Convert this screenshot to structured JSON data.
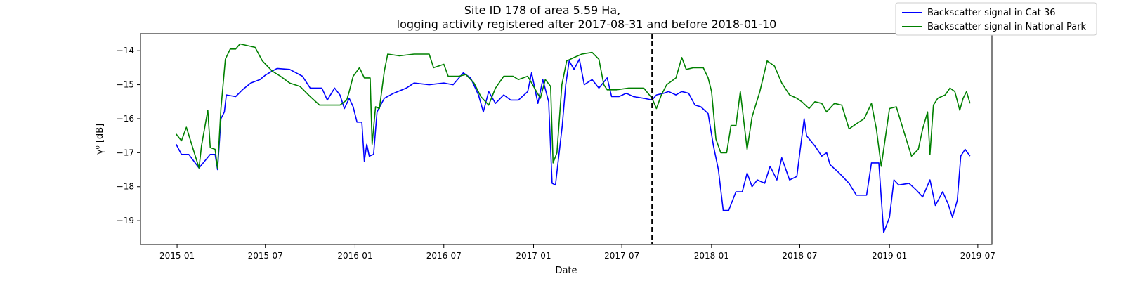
{
  "chart_data": {
    "type": "line",
    "title_line1": "Site ID 178 of area 5.59 Ha,",
    "title_line2": "logging activity registered after 2017-08-31 and before 2018-01-10",
    "xlabel": "Date",
    "ylabel": "γ̅⁰ [dB]",
    "ylim": [
      -19.7,
      -13.5
    ],
    "xlim": [
      "2014-10-18",
      "2019-07-30"
    ],
    "x_ticks": [
      "2015-01",
      "2015-07",
      "2016-01",
      "2016-07",
      "2017-01",
      "2017-07",
      "2018-01",
      "2018-07",
      "2019-01",
      "2019-07"
    ],
    "y_ticks": [
      -14,
      -15,
      -16,
      -17,
      -18,
      -19
    ],
    "y_tick_labels": [
      "−14",
      "−15",
      "−16",
      "−17",
      "−18",
      "−19"
    ],
    "vline": {
      "date": "2017-09-01",
      "style": "dashed",
      "color": "#000000"
    },
    "grid": false,
    "legend_position": "top-right",
    "series": [
      {
        "name": "Backscatter signal in Cat 36",
        "color": "#0000ff",
        "points": [
          [
            "2014-12-30",
            -16.75
          ],
          [
            "2015-01-10",
            -17.05
          ],
          [
            "2015-01-25",
            -17.05
          ],
          [
            "2015-02-15",
            -17.45
          ],
          [
            "2015-03-10",
            -17.05
          ],
          [
            "2015-03-20",
            -17.05
          ],
          [
            "2015-03-25",
            -17.5
          ],
          [
            "2015-04-01",
            -16.0
          ],
          [
            "2015-04-08",
            -15.8
          ],
          [
            "2015-04-12",
            -15.3
          ],
          [
            "2015-05-01",
            -15.35
          ],
          [
            "2015-05-15",
            -15.15
          ],
          [
            "2015-06-01",
            -14.95
          ],
          [
            "2015-06-20",
            -14.85
          ],
          [
            "2015-07-01",
            -14.72
          ],
          [
            "2015-07-15",
            -14.6
          ],
          [
            "2015-07-25",
            -14.52
          ],
          [
            "2015-08-20",
            -14.55
          ],
          [
            "2015-09-15",
            -14.75
          ],
          [
            "2015-10-01",
            -15.1
          ],
          [
            "2015-10-25",
            -15.1
          ],
          [
            "2015-11-05",
            -15.45
          ],
          [
            "2015-11-20",
            -15.1
          ],
          [
            "2015-12-01",
            -15.3
          ],
          [
            "2015-12-10",
            -15.7
          ],
          [
            "2015-12-20",
            -15.4
          ],
          [
            "2015-12-28",
            -15.65
          ],
          [
            "2016-01-05",
            -16.1
          ],
          [
            "2016-01-15",
            -16.1
          ],
          [
            "2016-01-20",
            -17.25
          ],
          [
            "2016-01-25",
            -16.75
          ],
          [
            "2016-01-30",
            -17.1
          ],
          [
            "2016-02-08",
            -17.05
          ],
          [
            "2016-02-15",
            -15.8
          ],
          [
            "2016-03-01",
            -15.4
          ],
          [
            "2016-03-20",
            -15.25
          ],
          [
            "2016-04-15",
            -15.1
          ],
          [
            "2016-05-01",
            -14.95
          ],
          [
            "2016-06-01",
            -15.0
          ],
          [
            "2016-07-01",
            -14.95
          ],
          [
            "2016-07-20",
            -15.0
          ],
          [
            "2016-08-10",
            -14.65
          ],
          [
            "2016-08-25",
            -14.8
          ],
          [
            "2016-09-10",
            -15.3
          ],
          [
            "2016-09-20",
            -15.8
          ],
          [
            "2016-10-01",
            -15.2
          ],
          [
            "2016-10-15",
            -15.55
          ],
          [
            "2016-11-01",
            -15.3
          ],
          [
            "2016-11-15",
            -15.45
          ],
          [
            "2016-12-01",
            -15.45
          ],
          [
            "2016-12-20",
            -15.2
          ],
          [
            "2016-12-28",
            -14.65
          ],
          [
            "2017-01-10",
            -15.55
          ],
          [
            "2017-01-20",
            -14.85
          ],
          [
            "2017-02-01",
            -15.5
          ],
          [
            "2017-02-08",
            -17.9
          ],
          [
            "2017-02-15",
            -17.95
          ],
          [
            "2017-03-01",
            -16.2
          ],
          [
            "2017-03-08",
            -15.0
          ],
          [
            "2017-03-15",
            -14.3
          ],
          [
            "2017-03-25",
            -14.55
          ],
          [
            "2017-04-05",
            -14.25
          ],
          [
            "2017-04-15",
            -15.0
          ],
          [
            "2017-05-01",
            -14.85
          ],
          [
            "2017-05-15",
            -15.1
          ],
          [
            "2017-06-01",
            -14.8
          ],
          [
            "2017-06-10",
            -15.35
          ],
          [
            "2017-06-25",
            -15.35
          ],
          [
            "2017-07-10",
            -15.25
          ],
          [
            "2017-07-25",
            -15.35
          ],
          [
            "2017-08-15",
            -15.4
          ],
          [
            "2017-09-01",
            -15.45
          ],
          [
            "2017-09-10",
            -15.3
          ],
          [
            "2017-09-25",
            -15.25
          ],
          [
            "2017-10-05",
            -15.2
          ],
          [
            "2017-10-20",
            -15.3
          ],
          [
            "2017-11-01",
            -15.2
          ],
          [
            "2017-11-15",
            -15.25
          ],
          [
            "2017-11-28",
            -15.6
          ],
          [
            "2017-12-10",
            -15.65
          ],
          [
            "2017-12-25",
            -15.85
          ],
          [
            "2018-01-05",
            -16.8
          ],
          [
            "2018-01-15",
            -17.5
          ],
          [
            "2018-01-25",
            -18.7
          ],
          [
            "2018-02-05",
            -18.7
          ],
          [
            "2018-02-20",
            -18.15
          ],
          [
            "2018-03-05",
            -18.15
          ],
          [
            "2018-03-15",
            -17.6
          ],
          [
            "2018-03-25",
            -18.0
          ],
          [
            "2018-04-05",
            -17.8
          ],
          [
            "2018-04-20",
            -17.9
          ],
          [
            "2018-05-01",
            -17.4
          ],
          [
            "2018-05-15",
            -17.8
          ],
          [
            "2018-05-25",
            -17.15
          ],
          [
            "2018-06-10",
            -17.8
          ],
          [
            "2018-06-25",
            -17.7
          ],
          [
            "2018-07-01",
            -17.0
          ],
          [
            "2018-07-10",
            -16.0
          ],
          [
            "2018-07-15",
            -16.5
          ],
          [
            "2018-08-01",
            -16.8
          ],
          [
            "2018-08-15",
            -17.1
          ],
          [
            "2018-08-25",
            -17.0
          ],
          [
            "2018-09-01",
            -17.35
          ],
          [
            "2018-09-20",
            -17.6
          ],
          [
            "2018-10-10",
            -17.9
          ],
          [
            "2018-10-25",
            -18.25
          ],
          [
            "2018-11-15",
            -18.25
          ],
          [
            "2018-11-25",
            -17.3
          ],
          [
            "2018-12-10",
            -17.3
          ],
          [
            "2018-12-20",
            -19.35
          ],
          [
            "2019-01-01",
            -18.9
          ],
          [
            "2019-01-10",
            -17.8
          ],
          [
            "2019-01-20",
            -17.95
          ],
          [
            "2019-02-10",
            -17.9
          ],
          [
            "2019-02-25",
            -18.1
          ],
          [
            "2019-03-10",
            -18.3
          ],
          [
            "2019-03-25",
            -17.8
          ],
          [
            "2019-04-05",
            -18.55
          ],
          [
            "2019-04-20",
            -18.15
          ],
          [
            "2019-05-01",
            -18.5
          ],
          [
            "2019-05-10",
            -18.9
          ],
          [
            "2019-05-20",
            -18.4
          ],
          [
            "2019-05-27",
            -17.1
          ],
          [
            "2019-06-05",
            -16.9
          ],
          [
            "2019-06-15",
            -17.1
          ]
        ]
      },
      {
        "name": "Backscatter signal in National Park",
        "color": "#008000",
        "points": [
          [
            "2014-12-30",
            -16.45
          ],
          [
            "2015-01-10",
            -16.65
          ],
          [
            "2015-01-20",
            -16.25
          ],
          [
            "2015-02-15",
            -17.45
          ],
          [
            "2015-02-20",
            -16.8
          ],
          [
            "2015-03-05",
            -15.75
          ],
          [
            "2015-03-10",
            -16.85
          ],
          [
            "2015-03-20",
            -16.9
          ],
          [
            "2015-03-25",
            -17.45
          ],
          [
            "2015-04-01",
            -15.7
          ],
          [
            "2015-04-10",
            -14.25
          ],
          [
            "2015-04-20",
            -13.95
          ],
          [
            "2015-05-01",
            -13.95
          ],
          [
            "2015-05-10",
            -13.8
          ],
          [
            "2015-05-25",
            -13.85
          ],
          [
            "2015-06-10",
            -13.9
          ],
          [
            "2015-06-25",
            -14.3
          ],
          [
            "2015-07-15",
            -14.6
          ],
          [
            "2015-08-01",
            -14.75
          ],
          [
            "2015-08-20",
            -14.95
          ],
          [
            "2015-09-10",
            -15.05
          ],
          [
            "2015-10-01",
            -15.35
          ],
          [
            "2015-10-20",
            -15.6
          ],
          [
            "2015-11-10",
            -15.6
          ],
          [
            "2015-12-01",
            -15.6
          ],
          [
            "2015-12-15",
            -15.45
          ],
          [
            "2015-12-20",
            -15.2
          ],
          [
            "2015-12-28",
            -14.75
          ],
          [
            "2016-01-10",
            -14.5
          ],
          [
            "2016-01-20",
            -14.8
          ],
          [
            "2016-02-01",
            -14.8
          ],
          [
            "2016-02-05",
            -16.75
          ],
          [
            "2016-02-12",
            -15.65
          ],
          [
            "2016-02-20",
            -15.7
          ],
          [
            "2016-03-01",
            -14.6
          ],
          [
            "2016-03-08",
            -14.1
          ],
          [
            "2016-04-01",
            -14.15
          ],
          [
            "2016-05-01",
            -14.1
          ],
          [
            "2016-06-01",
            -14.1
          ],
          [
            "2016-06-10",
            -14.5
          ],
          [
            "2016-07-01",
            -14.4
          ],
          [
            "2016-07-10",
            -14.75
          ],
          [
            "2016-08-01",
            -14.75
          ],
          [
            "2016-08-15",
            -14.7
          ],
          [
            "2016-09-01",
            -14.95
          ],
          [
            "2016-09-15",
            -15.35
          ],
          [
            "2016-10-01",
            -15.6
          ],
          [
            "2016-10-15",
            -15.1
          ],
          [
            "2016-11-01",
            -14.75
          ],
          [
            "2016-11-20",
            -14.75
          ],
          [
            "2016-12-01",
            -14.85
          ],
          [
            "2016-12-20",
            -14.75
          ],
          [
            "2017-01-01",
            -15.05
          ],
          [
            "2017-01-15",
            -15.4
          ],
          [
            "2017-01-25",
            -14.85
          ],
          [
            "2017-02-05",
            -15.05
          ],
          [
            "2017-02-10",
            -17.3
          ],
          [
            "2017-02-18",
            -17.0
          ],
          [
            "2017-02-28",
            -15.0
          ],
          [
            "2017-03-10",
            -14.3
          ],
          [
            "2017-03-25",
            -14.2
          ],
          [
            "2017-04-10",
            -14.1
          ],
          [
            "2017-05-01",
            -14.05
          ],
          [
            "2017-05-15",
            -14.25
          ],
          [
            "2017-05-25",
            -15.0
          ],
          [
            "2017-06-01",
            -15.15
          ],
          [
            "2017-06-20",
            -15.15
          ],
          [
            "2017-07-15",
            -15.1
          ],
          [
            "2017-08-01",
            -15.1
          ],
          [
            "2017-08-15",
            -15.1
          ],
          [
            "2017-09-01",
            -15.4
          ],
          [
            "2017-09-10",
            -15.7
          ],
          [
            "2017-09-20",
            -15.3
          ],
          [
            "2017-10-01",
            -15.0
          ],
          [
            "2017-10-20",
            -14.8
          ],
          [
            "2017-11-01",
            -14.2
          ],
          [
            "2017-11-10",
            -14.55
          ],
          [
            "2017-11-25",
            -14.5
          ],
          [
            "2017-12-15",
            -14.5
          ],
          [
            "2017-12-25",
            -14.8
          ],
          [
            "2018-01-01",
            -15.2
          ],
          [
            "2018-01-10",
            -16.6
          ],
          [
            "2018-01-20",
            -17.0
          ],
          [
            "2018-02-01",
            -17.0
          ],
          [
            "2018-02-10",
            -16.2
          ],
          [
            "2018-02-20",
            -16.2
          ],
          [
            "2018-03-01",
            -15.2
          ],
          [
            "2018-03-15",
            -16.9
          ],
          [
            "2018-03-25",
            -15.95
          ],
          [
            "2018-04-10",
            -15.2
          ],
          [
            "2018-04-25",
            -14.3
          ],
          [
            "2018-05-10",
            -14.45
          ],
          [
            "2018-05-25",
            -14.95
          ],
          [
            "2018-06-10",
            -15.3
          ],
          [
            "2018-06-25",
            -15.4
          ],
          [
            "2018-07-05",
            -15.5
          ],
          [
            "2018-07-20",
            -15.7
          ],
          [
            "2018-08-01",
            -15.5
          ],
          [
            "2018-08-15",
            -15.55
          ],
          [
            "2018-08-25",
            -15.8
          ],
          [
            "2018-09-10",
            -15.55
          ],
          [
            "2018-09-25",
            -15.6
          ],
          [
            "2018-10-10",
            -16.3
          ],
          [
            "2018-10-25",
            -16.15
          ],
          [
            "2018-11-10",
            -16.0
          ],
          [
            "2018-11-25",
            -15.55
          ],
          [
            "2018-12-05",
            -16.3
          ],
          [
            "2018-12-15",
            -17.4
          ],
          [
            "2018-12-25",
            -16.4
          ],
          [
            "2019-01-01",
            -15.7
          ],
          [
            "2019-01-15",
            -15.65
          ],
          [
            "2019-02-01",
            -16.45
          ],
          [
            "2019-02-15",
            -17.1
          ],
          [
            "2019-03-01",
            -16.9
          ],
          [
            "2019-03-10",
            -16.3
          ],
          [
            "2019-03-20",
            -15.8
          ],
          [
            "2019-03-25",
            -17.05
          ],
          [
            "2019-04-01",
            -15.6
          ],
          [
            "2019-04-10",
            -15.4
          ],
          [
            "2019-04-25",
            -15.3
          ],
          [
            "2019-05-05",
            -15.1
          ],
          [
            "2019-05-15",
            -15.2
          ],
          [
            "2019-05-25",
            -15.75
          ],
          [
            "2019-06-01",
            -15.4
          ],
          [
            "2019-06-08",
            -15.2
          ],
          [
            "2019-06-15",
            -15.55
          ]
        ]
      }
    ]
  }
}
